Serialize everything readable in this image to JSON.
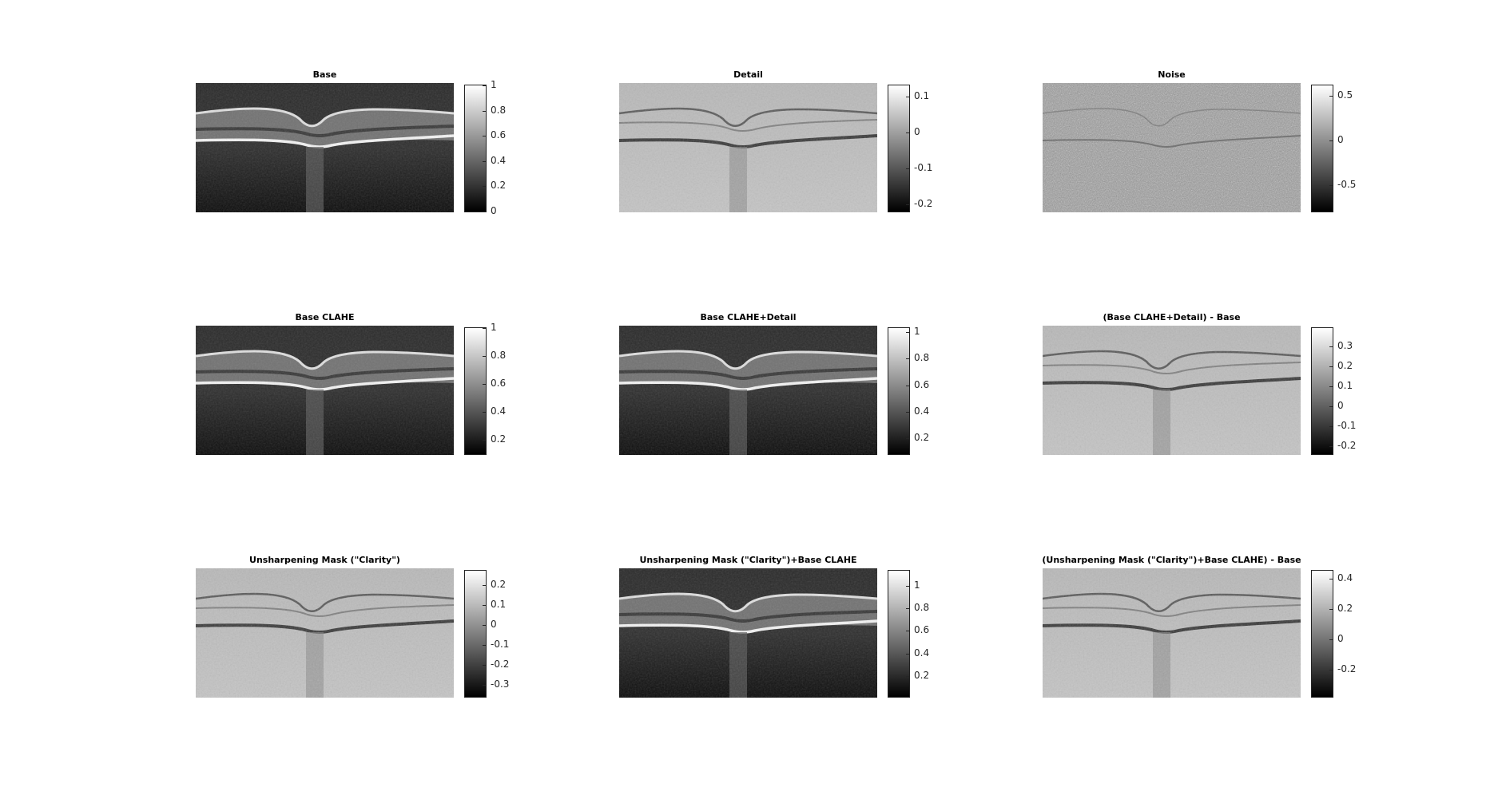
{
  "figure": {
    "colormap": "gray",
    "panels": [
      {
        "title": "Base",
        "image": "oct-base",
        "background": "dark",
        "colorbar": {
          "min": 0,
          "max": 1,
          "ticks": [
            0,
            0.2,
            0.4,
            0.6,
            0.8,
            1
          ],
          "labels": [
            "0",
            "0.2",
            "0.4",
            "0.6",
            "0.8",
            "1"
          ]
        }
      },
      {
        "title": "Detail",
        "image": "oct-detail",
        "background": "mid",
        "colorbar": {
          "min": -0.22,
          "max": 0.13,
          "ticks": [
            -0.2,
            -0.1,
            0,
            0.1
          ],
          "labels": [
            "-0.2",
            "-0.1",
            "0",
            "0.1"
          ]
        }
      },
      {
        "title": "Noise",
        "image": "oct-noise",
        "background": "noise",
        "colorbar": {
          "min": -0.8,
          "max": 0.62,
          "ticks": [
            -0.5,
            0,
            0.5
          ],
          "labels": [
            "-0.5",
            "0",
            "0.5"
          ]
        }
      },
      {
        "title": "Base CLAHE",
        "image": "oct-base-clahe",
        "background": "dark",
        "colorbar": {
          "min": 0.1,
          "max": 1.0,
          "ticks": [
            0.2,
            0.4,
            0.6,
            0.8,
            1
          ],
          "labels": [
            "0.2",
            "0.4",
            "0.6",
            "0.8",
            "1"
          ]
        }
      },
      {
        "title": "Base CLAHE+Detail",
        "image": "oct-base-clahe-detail",
        "background": "dark",
        "colorbar": {
          "min": 0.08,
          "max": 1.03,
          "ticks": [
            0.2,
            0.4,
            0.6,
            0.8,
            1
          ],
          "labels": [
            "0.2",
            "0.4",
            "0.6",
            "0.8",
            "1"
          ]
        }
      },
      {
        "title": "(Base CLAHE+Detail) - Base",
        "image": "oct-diff-1",
        "background": "mid",
        "colorbar": {
          "min": -0.24,
          "max": 0.39,
          "ticks": [
            -0.2,
            -0.1,
            0,
            0.1,
            0.2,
            0.3
          ],
          "labels": [
            "-0.2",
            "-0.1",
            "0",
            "0.1",
            "0.2",
            "0.3"
          ]
        }
      },
      {
        "title": "Unsharpening Mask (\"Clarity\")",
        "image": "oct-clarity",
        "background": "mid",
        "colorbar": {
          "min": -0.36,
          "max": 0.27,
          "ticks": [
            -0.3,
            -0.2,
            -0.1,
            0,
            0.1,
            0.2
          ],
          "labels": [
            "-0.3",
            "-0.2",
            "-0.1",
            "0",
            "0.1",
            "0.2"
          ]
        }
      },
      {
        "title": "Unsharpening Mask (\"Clarity\")+Base CLAHE",
        "image": "oct-clarity-clahe",
        "background": "dark",
        "colorbar": {
          "min": 0.02,
          "max": 1.13,
          "ticks": [
            0.2,
            0.4,
            0.6,
            0.8,
            1
          ],
          "labels": [
            "0.2",
            "0.4",
            "0.6",
            "0.8",
            "1"
          ]
        }
      },
      {
        "title": "(Unsharpening Mask (\"Clarity\")+Base CLAHE) - Base",
        "image": "oct-diff-2",
        "background": "mid",
        "colorbar": {
          "min": -0.38,
          "max": 0.45,
          "ticks": [
            -0.2,
            0,
            0.2,
            0.4
          ],
          "labels": [
            "-0.2",
            "0",
            "0.2",
            "0.4"
          ]
        }
      }
    ]
  },
  "chart_data": [
    {
      "type": "heatmap",
      "title": "Base",
      "colorbar_range": [
        0,
        1
      ],
      "colorbar_ticks": [
        0,
        0.2,
        0.4,
        0.6,
        0.8,
        1
      ]
    },
    {
      "type": "heatmap",
      "title": "Detail",
      "colorbar_range": [
        -0.22,
        0.13
      ],
      "colorbar_ticks": [
        -0.2,
        -0.1,
        0,
        0.1
      ]
    },
    {
      "type": "heatmap",
      "title": "Noise",
      "colorbar_range": [
        -0.8,
        0.62
      ],
      "colorbar_ticks": [
        -0.5,
        0,
        0.5
      ]
    },
    {
      "type": "heatmap",
      "title": "Base CLAHE",
      "colorbar_range": [
        0.1,
        1.0
      ],
      "colorbar_ticks": [
        0.2,
        0.4,
        0.6,
        0.8,
        1
      ]
    },
    {
      "type": "heatmap",
      "title": "Base CLAHE+Detail",
      "colorbar_range": [
        0.08,
        1.03
      ],
      "colorbar_ticks": [
        0.2,
        0.4,
        0.6,
        0.8,
        1
      ]
    },
    {
      "type": "heatmap",
      "title": "(Base CLAHE+Detail) - Base",
      "colorbar_range": [
        -0.24,
        0.39
      ],
      "colorbar_ticks": [
        -0.2,
        -0.1,
        0,
        0.1,
        0.2,
        0.3
      ]
    },
    {
      "type": "heatmap",
      "title": "Unsharpening Mask (\"Clarity\")",
      "colorbar_range": [
        -0.36,
        0.27
      ],
      "colorbar_ticks": [
        -0.3,
        -0.2,
        -0.1,
        0,
        0.1,
        0.2
      ]
    },
    {
      "type": "heatmap",
      "title": "Unsharpening Mask (\"Clarity\")+Base CLAHE",
      "colorbar_range": [
        0.02,
        1.13
      ],
      "colorbar_ticks": [
        0.2,
        0.4,
        0.6,
        0.8,
        1
      ]
    },
    {
      "type": "heatmap",
      "title": "(Unsharpening Mask (\"Clarity\")+Base CLAHE) - Base",
      "colorbar_range": [
        -0.38,
        0.45
      ],
      "colorbar_ticks": [
        -0.2,
        0,
        0.2,
        0.4
      ]
    }
  ]
}
